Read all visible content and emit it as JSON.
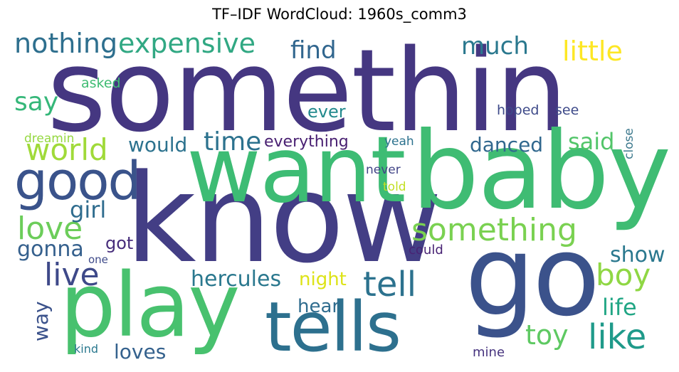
{
  "title": "TF–IDF WordCloud: 1960s_comm3",
  "words": [
    {
      "text": "somethin",
      "color": "#453781"
    },
    {
      "text": "know",
      "color": "#433e85"
    },
    {
      "text": "baby",
      "color": "#3fbc73"
    },
    {
      "text": "want",
      "color": "#3dbc74"
    },
    {
      "text": "go",
      "color": "#3b528b"
    },
    {
      "text": "play",
      "color": "#48c16e"
    },
    {
      "text": "tells",
      "color": "#2d708e"
    },
    {
      "text": "good",
      "color": "#3a538b"
    },
    {
      "text": "something",
      "color": "#7ad151"
    },
    {
      "text": "like",
      "color": "#1f9a8a"
    },
    {
      "text": "tell",
      "color": "#2c728e"
    },
    {
      "text": "world",
      "color": "#a0da39"
    },
    {
      "text": "love",
      "color": "#6ccd5a"
    },
    {
      "text": "live",
      "color": "#3e4989"
    },
    {
      "text": "boy",
      "color": "#8fd744"
    },
    {
      "text": "expensive",
      "color": "#31a883"
    },
    {
      "text": "nothing",
      "color": "#2e6f8e"
    },
    {
      "text": "find",
      "color": "#31668e"
    },
    {
      "text": "much",
      "color": "#2a788e"
    },
    {
      "text": "little",
      "color": "#fde725"
    },
    {
      "text": "say",
      "color": "#35b779"
    },
    {
      "text": "life",
      "color": "#21a685"
    },
    {
      "text": "toy",
      "color": "#5ec962"
    },
    {
      "text": "loves",
      "color": "#34618d"
    },
    {
      "text": "hercules",
      "color": "#2a788e"
    },
    {
      "text": "time",
      "color": "#2c728e"
    },
    {
      "text": "girl",
      "color": "#2f6c8e"
    },
    {
      "text": "gonna",
      "color": "#35608d"
    },
    {
      "text": "show",
      "color": "#2a788e"
    },
    {
      "text": "said",
      "color": "#52c569"
    },
    {
      "text": "danced",
      "color": "#31688e"
    },
    {
      "text": "hear",
      "color": "#2f6c8e"
    },
    {
      "text": "way",
      "color": "#3b528b"
    },
    {
      "text": "night",
      "color": "#dde318"
    },
    {
      "text": "would",
      "color": "#2c728e"
    },
    {
      "text": "ever",
      "color": "#238a8d"
    },
    {
      "text": "got",
      "color": "#472d7b"
    },
    {
      "text": "everything",
      "color": "#481f71"
    },
    {
      "text": "hoped",
      "color": "#3e4a89"
    },
    {
      "text": "see",
      "color": "#3e4a89"
    },
    {
      "text": "asked",
      "color": "#3fbc73"
    },
    {
      "text": "dreamin",
      "color": "#95d840"
    },
    {
      "text": "yeah",
      "color": "#2c728e"
    },
    {
      "text": "never",
      "color": "#414487"
    },
    {
      "text": "told",
      "color": "#c2df23"
    },
    {
      "text": "close",
      "color": "#3e7a8e"
    },
    {
      "text": "could",
      "color": "#482374"
    },
    {
      "text": "one",
      "color": "#3e4a89"
    },
    {
      "text": "mine",
      "color": "#46337e"
    },
    {
      "text": "kind",
      "color": "#2a788e"
    }
  ]
}
